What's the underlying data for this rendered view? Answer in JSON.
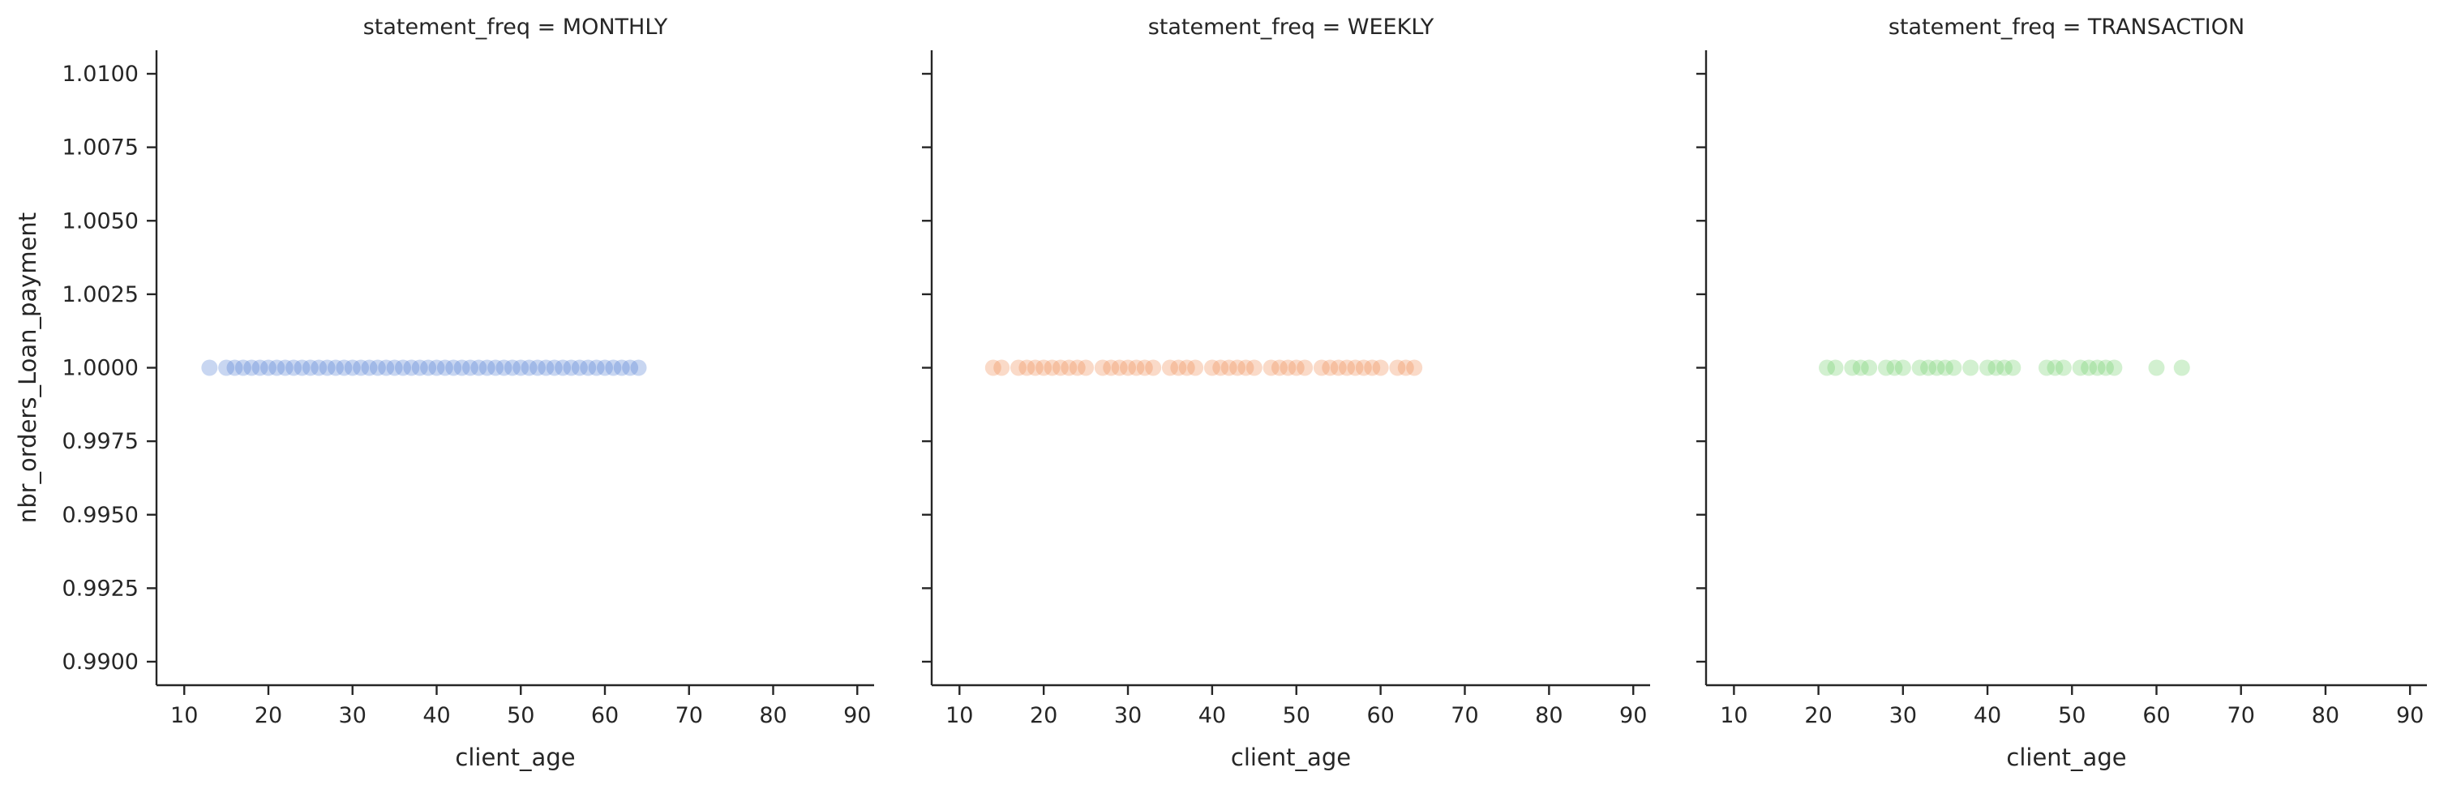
{
  "chart_data": [
    {
      "type": "scatter",
      "title": "statement_freq = MONTHLY",
      "xlabel": "client_age",
      "ylabel": "nbr_orders_Loan_payment",
      "color": "#4878d0",
      "alpha": 0.3,
      "x": [
        13,
        15,
        16,
        17,
        18,
        19,
        20,
        21,
        22,
        23,
        24,
        25,
        26,
        27,
        28,
        29,
        30,
        31,
        32,
        33,
        34,
        35,
        36,
        37,
        38,
        39,
        40,
        41,
        42,
        43,
        44,
        45,
        46,
        47,
        48,
        49,
        50,
        51,
        52,
        53,
        54,
        55,
        56,
        57,
        58,
        59,
        60,
        61,
        62,
        63,
        64
      ],
      "values": [
        1,
        1,
        1,
        1,
        1,
        1,
        1,
        1,
        1,
        1,
        1,
        1,
        1,
        1,
        1,
        1,
        1,
        1,
        1,
        1,
        1,
        1,
        1,
        1,
        1,
        1,
        1,
        1,
        1,
        1,
        1,
        1,
        1,
        1,
        1,
        1,
        1,
        1,
        1,
        1,
        1,
        1,
        1,
        1,
        1,
        1,
        1,
        1,
        1,
        1,
        1
      ],
      "xlim": [
        6.7,
        92
      ],
      "xticks": [
        10,
        20,
        30,
        40,
        50,
        60,
        70,
        80,
        90
      ],
      "ylim": [
        0.9892,
        1.0108
      ],
      "yticks": [
        {
          "value": 0.99,
          "label": "0.9900"
        },
        {
          "value": 0.9925,
          "label": "0.9925"
        },
        {
          "value": 0.995,
          "label": "0.9950"
        },
        {
          "value": 0.9975,
          "label": "0.9975"
        },
        {
          "value": 1,
          "label": "1.0000"
        },
        {
          "value": 1.0025,
          "label": "1.0025"
        },
        {
          "value": 1.005,
          "label": "1.0050"
        },
        {
          "value": 1.0075,
          "label": "1.0075"
        },
        {
          "value": 1.01,
          "label": "1.0100"
        }
      ]
    },
    {
      "type": "scatter",
      "title": "statement_freq = WEEKLY",
      "xlabel": "client_age",
      "color": "#ee854a",
      "alpha": 0.3,
      "x": [
        14,
        15,
        17,
        18,
        19,
        20,
        21,
        22,
        23,
        24,
        25,
        27,
        28,
        29,
        30,
        31,
        32,
        33,
        35,
        36,
        37,
        38,
        40,
        41,
        42,
        43,
        44,
        45,
        47,
        48,
        49,
        50,
        51,
        53,
        54,
        55,
        56,
        57,
        58,
        59,
        60,
        62,
        63,
        64
      ],
      "values": [
        1,
        1,
        1,
        1,
        1,
        1,
        1,
        1,
        1,
        1,
        1,
        1,
        1,
        1,
        1,
        1,
        1,
        1,
        1,
        1,
        1,
        1,
        1,
        1,
        1,
        1,
        1,
        1,
        1,
        1,
        1,
        1,
        1,
        1,
        1,
        1,
        1,
        1,
        1,
        1,
        1,
        1,
        1,
        1
      ],
      "xlim": [
        6.7,
        92
      ],
      "xticks": [
        10,
        20,
        30,
        40,
        50,
        60,
        70,
        80,
        90
      ]
    },
    {
      "type": "scatter",
      "title": "statement_freq = TRANSACTION",
      "xlabel": "client_age",
      "color": "#6acc64",
      "alpha": 0.3,
      "x": [
        21,
        22,
        24,
        25,
        26,
        28,
        29,
        30,
        32,
        33,
        34,
        35,
        36,
        38,
        40,
        41,
        42,
        43,
        47,
        48,
        49,
        51,
        52,
        53,
        54,
        55,
        60,
        63
      ],
      "values": [
        1,
        1,
        1,
        1,
        1,
        1,
        1,
        1,
        1,
        1,
        1,
        1,
        1,
        1,
        1,
        1,
        1,
        1,
        1,
        1,
        1,
        1,
        1,
        1,
        1,
        1,
        1,
        1
      ],
      "xlim": [
        6.7,
        92
      ],
      "xticks": [
        10,
        20,
        30,
        40,
        50,
        60,
        70,
        80,
        90
      ]
    }
  ]
}
